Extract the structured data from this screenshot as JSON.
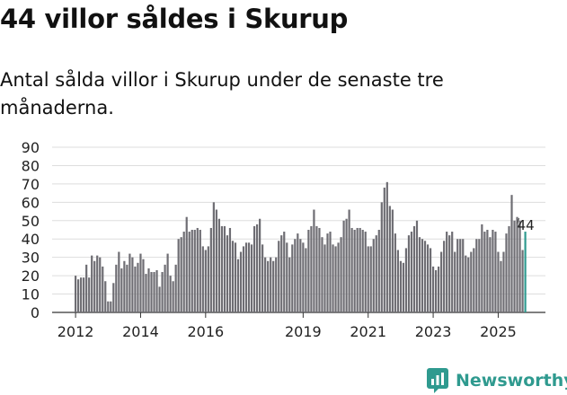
{
  "header": {
    "title": "44 villor såldes i Skurup",
    "subtitle": "Antal sålda villor i Skurup under de senaste tre månaderna."
  },
  "brand": {
    "name": "Newsworthy",
    "icon": "newsworthy-logo-icon",
    "color": "#2f9a8f"
  },
  "colors": {
    "bar": "#6e6d73",
    "highlight": "#2f9a8f",
    "grid": "#dddddd",
    "axis": "#333333"
  },
  "chart_data": {
    "type": "bar",
    "title": "Antal sålda villor i Skurup",
    "xlabel": "",
    "ylabel": "",
    "ylim": [
      0,
      90
    ],
    "yticks": [
      0,
      10,
      20,
      30,
      40,
      50,
      60,
      70,
      80,
      90
    ],
    "xticks": [
      {
        "label": "2012",
        "index": 0
      },
      {
        "label": "2014",
        "index": 24
      },
      {
        "label": "2016",
        "index": 48
      },
      {
        "label": "2019",
        "index": 84
      },
      {
        "label": "2021",
        "index": 108
      },
      {
        "label": "2023",
        "index": 132
      },
      {
        "label": "2025",
        "index": 156
      }
    ],
    "start": "2012-01",
    "values": [
      20,
      18,
      19,
      19,
      26,
      19,
      31,
      28,
      31,
      30,
      25,
      17,
      6,
      6,
      16,
      26,
      33,
      24,
      28,
      26,
      32,
      30,
      25,
      27,
      32,
      29,
      21,
      24,
      22,
      22,
      23,
      14,
      22,
      26,
      32,
      20,
      17,
      26,
      40,
      41,
      44,
      52,
      44,
      45,
      45,
      46,
      45,
      36,
      34,
      36,
      46,
      60,
      56,
      51,
      47,
      47,
      42,
      46,
      39,
      38,
      29,
      33,
      36,
      38,
      38,
      37,
      47,
      48,
      51,
      37,
      30,
      28,
      30,
      28,
      30,
      39,
      42,
      44,
      38,
      30,
      37,
      40,
      43,
      40,
      38,
      35,
      45,
      47,
      56,
      47,
      46,
      41,
      37,
      43,
      44,
      37,
      36,
      38,
      41,
      50,
      51,
      56,
      46,
      45,
      46,
      46,
      45,
      44,
      36,
      36,
      40,
      42,
      45,
      60,
      68,
      71,
      58,
      56,
      43,
      34,
      28,
      27,
      35,
      42,
      44,
      47,
      50,
      41,
      40,
      39,
      37,
      35,
      25,
      23,
      25,
      33,
      39,
      44,
      42,
      44,
      33,
      40,
      40,
      40,
      31,
      30,
      33,
      35,
      40,
      40,
      48,
      44,
      45,
      41,
      45,
      44,
      33,
      28,
      33,
      43,
      47,
      64,
      50,
      52,
      50,
      34,
      44
    ],
    "annotation": {
      "label": "44",
      "index": 166
    }
  }
}
